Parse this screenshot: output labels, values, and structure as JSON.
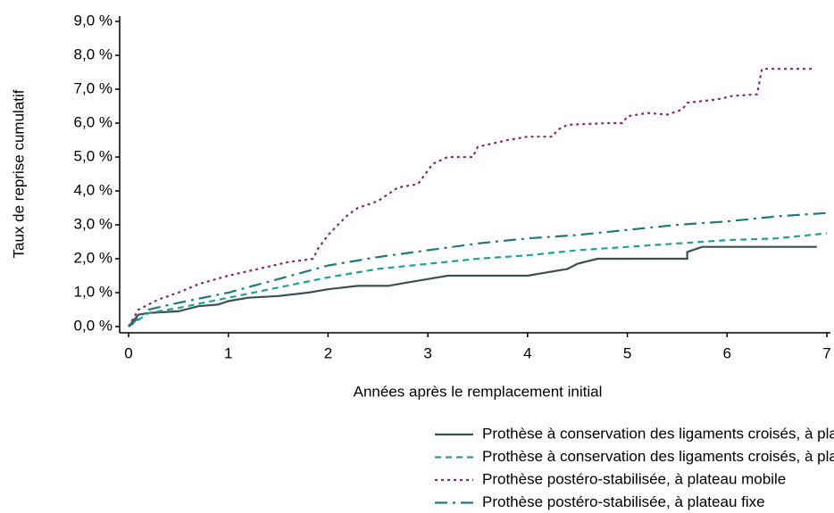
{
  "chart_data": {
    "type": "line",
    "x_label": "Années après le remplacement initial",
    "y_label": "Taux de reprise cumulatif",
    "xlim": [
      0,
      7
    ],
    "ylim": [
      0,
      9
    ],
    "xticks": [
      0,
      1,
      2,
      3,
      4,
      5,
      6,
      7
    ],
    "yticks": [
      {
        "value": 0,
        "label": "0,0 %"
      },
      {
        "value": 1,
        "label": "1,0 %"
      },
      {
        "value": 2,
        "label": "2,0 %"
      },
      {
        "value": 3,
        "label": "3,0 %"
      },
      {
        "value": 4,
        "label": "4,0 %"
      },
      {
        "value": 5,
        "label": "5,0 %"
      },
      {
        "value": 6,
        "label": "6,0 %"
      },
      {
        "value": 7,
        "label": "7,0 %"
      },
      {
        "value": 8,
        "label": "8,0 %"
      },
      {
        "value": 9,
        "label": "9,0 %"
      }
    ],
    "legend": "bottom",
    "series": [
      {
        "name": "Prothèse à conservation des ligaments croisés, à plateau mobile",
        "color": "#3b5050",
        "dash": "solid",
        "x": [
          0,
          0.1,
          0.2,
          0.5,
          0.7,
          0.9,
          1.0,
          1.2,
          1.5,
          1.8,
          2.0,
          2.3,
          2.6,
          2.8,
          3.0,
          3.2,
          3.6,
          4.0,
          4.2,
          4.4,
          4.5,
          4.7,
          5.0,
          5.6,
          5.6,
          5.75,
          6.9
        ],
        "values": [
          0,
          0.35,
          0.4,
          0.45,
          0.6,
          0.65,
          0.75,
          0.85,
          0.9,
          1.0,
          1.1,
          1.2,
          1.2,
          1.3,
          1.4,
          1.5,
          1.5,
          1.5,
          1.6,
          1.7,
          1.85,
          2.0,
          2.0,
          2.0,
          2.2,
          2.35,
          2.35
        ]
      },
      {
        "name": "Prothèse à conservation des ligaments croisés, à plateau fixe",
        "color": "#1aa39a",
        "dash": "dashed",
        "x": [
          0,
          0.2,
          0.5,
          1.0,
          1.5,
          2.0,
          2.5,
          3.0,
          3.5,
          4.0,
          4.5,
          5.0,
          5.5,
          6.0,
          6.5,
          7.0
        ],
        "values": [
          0,
          0.4,
          0.55,
          0.85,
          1.15,
          1.45,
          1.7,
          1.85,
          2.0,
          2.1,
          2.25,
          2.35,
          2.45,
          2.55,
          2.6,
          2.75
        ]
      },
      {
        "name": "Prothèse postéro-stabilisée, à plateau mobile",
        "color": "#8b2a6b",
        "dash": "dotted",
        "x": [
          0,
          0.1,
          0.3,
          0.5,
          0.7,
          1.0,
          1.3,
          1.6,
          1.85,
          1.9,
          2.0,
          2.2,
          2.3,
          2.5,
          2.7,
          2.9,
          3.05,
          3.2,
          3.45,
          3.5,
          3.8,
          4.0,
          4.25,
          4.3,
          4.4,
          4.8,
          4.95,
          5.0,
          5.2,
          5.4,
          5.55,
          5.6,
          5.9,
          6.05,
          6.3,
          6.35,
          6.85
        ],
        "values": [
          0,
          0.5,
          0.8,
          1.0,
          1.25,
          1.5,
          1.7,
          1.9,
          2.0,
          2.3,
          2.7,
          3.3,
          3.5,
          3.7,
          4.1,
          4.2,
          4.8,
          5.0,
          5.0,
          5.3,
          5.5,
          5.6,
          5.6,
          5.8,
          5.95,
          6.0,
          6.0,
          6.2,
          6.3,
          6.25,
          6.4,
          6.6,
          6.7,
          6.8,
          6.85,
          7.6,
          7.6
        ]
      },
      {
        "name": "Prothèse postéro-stabilisée, à plateau fixe",
        "color": "#1f7a80",
        "dash": "dashdot",
        "x": [
          0,
          0.2,
          0.5,
          1.0,
          1.5,
          2.0,
          2.5,
          3.0,
          3.5,
          4.0,
          4.5,
          5.0,
          5.5,
          6.0,
          6.5,
          7.0
        ],
        "values": [
          0,
          0.5,
          0.7,
          1.0,
          1.4,
          1.8,
          2.05,
          2.25,
          2.45,
          2.6,
          2.7,
          2.85,
          3.0,
          3.1,
          3.25,
          3.35
        ]
      }
    ]
  }
}
